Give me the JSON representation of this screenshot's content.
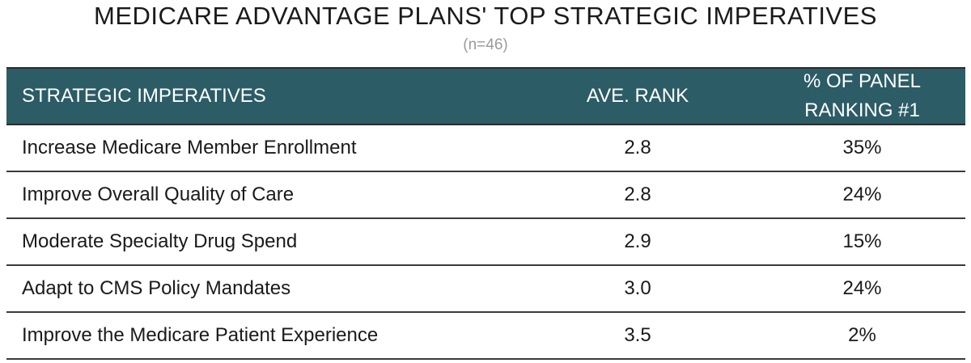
{
  "chart_data": {
    "type": "table",
    "title": "MEDICARE ADVANTAGE PLANS' TOP STRATEGIC IMPERATIVES",
    "subtitle": "(n=46)",
    "columns": [
      "STRATEGIC IMPERATIVES",
      "AVE. RANK",
      "% OF PANEL RANKING #1"
    ],
    "header_lines": {
      "col3_line1": "% OF PANEL",
      "col3_line2": "RANKING #1"
    },
    "rows": [
      {
        "imperative": "Increase Medicare Member Enrollment",
        "ave_rank": "2.8",
        "pct_rank1": "35%"
      },
      {
        "imperative": "Improve Overall Quality of Care",
        "ave_rank": "2.8",
        "pct_rank1": "24%"
      },
      {
        "imperative": "Moderate Specialty Drug Spend",
        "ave_rank": "2.9",
        "pct_rank1": "15%"
      },
      {
        "imperative": "Adapt to CMS Policy Mandates",
        "ave_rank": "3.0",
        "pct_rank1": "24%"
      },
      {
        "imperative": "Improve the Medicare Patient Experience",
        "ave_rank": "3.5",
        "pct_rank1": "2%"
      }
    ],
    "colors": {
      "header_bg": "#2c5c66",
      "header_text": "#ffffff",
      "subtitle": "#9a9a9a"
    }
  }
}
